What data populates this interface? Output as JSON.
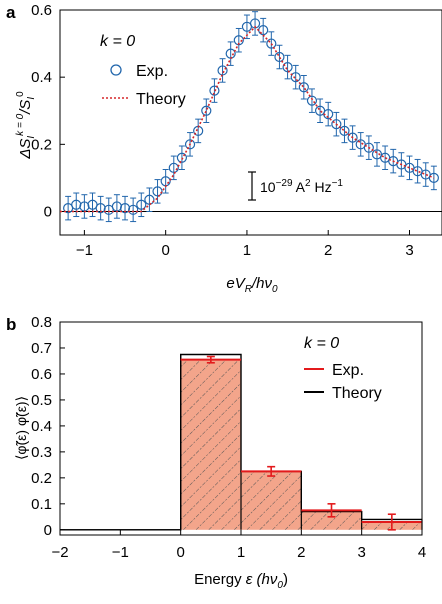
{
  "colors": {
    "exp_marker": "#2166ac",
    "theory_a": "#d62728",
    "bar_fill": "#f3a58b",
    "exp_b": "#e31a1c",
    "theory_b": "#000000",
    "hatch": "#555555"
  },
  "chart_data": [
    {
      "type": "scatter",
      "panel_label": "a",
      "annotation_k": "k = 0",
      "xlabel_parts": {
        "main": "eV",
        "sub": "R",
        "mid": "/hν",
        "sub2": "0"
      },
      "ylabel_parts": {
        "main": "ΔS",
        "sub": "I",
        "sup": "k = 0",
        "div": "/S",
        "sub2": "I",
        "sup2": "0"
      },
      "scale_bar": {
        "pre": "10",
        "exp": "−29",
        "unit": " A",
        "unit_exp": "2",
        "tail": " Hz",
        "tail_exp": "−1"
      },
      "xlim": [
        -1.3,
        3.4
      ],
      "ylim": [
        -0.07,
        0.6
      ],
      "x_ticks": [
        -1,
        0,
        1,
        2,
        3
      ],
      "x_tick_labels": [
        "−1",
        "0",
        "1",
        "2",
        "3"
      ],
      "y_ticks": [
        0,
        0.2,
        0.4,
        0.6
      ],
      "y_tick_labels": [
        "0",
        "0.2",
        "0.4",
        "0.6"
      ],
      "legend": [
        "Exp.",
        "Theory"
      ],
      "series": [
        {
          "name": "Exp.",
          "style": "markers",
          "error": 0.035,
          "x": [
            -1.2,
            -1.1,
            -1.0,
            -0.9,
            -0.8,
            -0.7,
            -0.6,
            -0.5,
            -0.4,
            -0.3,
            -0.2,
            -0.1,
            0.0,
            0.1,
            0.2,
            0.3,
            0.4,
            0.5,
            0.6,
            0.7,
            0.8,
            0.9,
            1.0,
            1.1,
            1.2,
            1.3,
            1.4,
            1.5,
            1.6,
            1.7,
            1.8,
            1.9,
            2.0,
            2.1,
            2.2,
            2.3,
            2.4,
            2.5,
            2.6,
            2.7,
            2.8,
            2.9,
            3.0,
            3.1,
            3.2,
            3.3
          ],
          "y": [
            0.01,
            0.02,
            0.015,
            0.02,
            0.01,
            0.005,
            0.015,
            0.01,
            0.005,
            0.02,
            0.035,
            0.06,
            0.09,
            0.13,
            0.16,
            0.2,
            0.24,
            0.3,
            0.36,
            0.42,
            0.47,
            0.51,
            0.55,
            0.56,
            0.54,
            0.5,
            0.46,
            0.43,
            0.4,
            0.37,
            0.33,
            0.3,
            0.29,
            0.26,
            0.24,
            0.22,
            0.2,
            0.19,
            0.17,
            0.16,
            0.15,
            0.14,
            0.13,
            0.12,
            0.11,
            0.1
          ]
        },
        {
          "name": "Theory",
          "style": "dotted-line",
          "x": [
            -1.3,
            -0.3,
            -0.1,
            0.1,
            0.3,
            0.5,
            0.7,
            0.9,
            1.1,
            1.3,
            1.5,
            1.7,
            1.9,
            2.1,
            2.3,
            2.5,
            2.7,
            2.9,
            3.1,
            3.3
          ],
          "y": [
            0,
            0,
            0.04,
            0.11,
            0.2,
            0.3,
            0.41,
            0.5,
            0.55,
            0.5,
            0.42,
            0.37,
            0.3,
            0.26,
            0.22,
            0.19,
            0.16,
            0.14,
            0.12,
            0.1
          ]
        }
      ]
    },
    {
      "type": "bar",
      "panel_label": "b",
      "annotation_k": "k = 0",
      "xlabel_parts": {
        "main": "Energy ",
        "sym": "ε",
        "paren": " (hν",
        "sub": "0",
        "close": ")"
      },
      "ylabel": "⟨φ̃(ε) φ̃(ε)⟩",
      "xlim": [
        -2,
        4
      ],
      "ylim": [
        -0.02,
        0.8
      ],
      "x_ticks": [
        -2,
        -1,
        0,
        1,
        2,
        3,
        4
      ],
      "x_tick_labels": [
        "−2",
        "−1",
        "0",
        "1",
        "2",
        "3",
        "4"
      ],
      "y_ticks": [
        0,
        0.1,
        0.2,
        0.3,
        0.4,
        0.5,
        0.6,
        0.7,
        0.8
      ],
      "y_tick_labels": [
        "0",
        "0.1",
        "0.2",
        "0.3",
        "0.4",
        "0.5",
        "0.6",
        "0.7",
        "0.8"
      ],
      "legend": [
        "Exp.",
        "Theory"
      ],
      "bins": [
        [
          -2,
          -1
        ],
        [
          -1,
          0
        ],
        [
          0,
          1
        ],
        [
          1,
          2
        ],
        [
          2,
          3
        ],
        [
          3,
          4
        ]
      ],
      "series": [
        {
          "name": "Exp.",
          "values": [
            0,
            0,
            0.655,
            0.225,
            0.075,
            0.03
          ],
          "errors": [
            0,
            0,
            0.012,
            0.018,
            0.025,
            0.03
          ]
        },
        {
          "name": "Theory",
          "values": [
            0,
            0,
            0.675,
            0.225,
            0.07,
            0.04
          ]
        }
      ]
    }
  ]
}
